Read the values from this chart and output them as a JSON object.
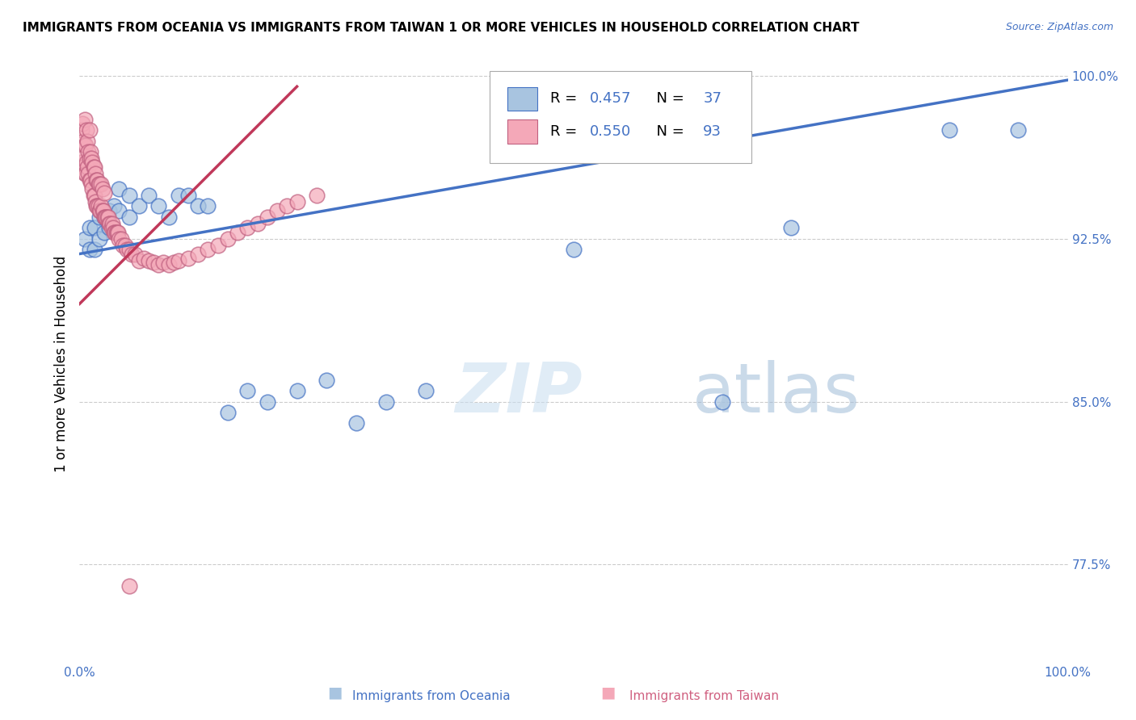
{
  "title": "IMMIGRANTS FROM OCEANIA VS IMMIGRANTS FROM TAIWAN 1 OR MORE VEHICLES IN HOUSEHOLD CORRELATION CHART",
  "source": "Source: ZipAtlas.com",
  "ylabel": "1 or more Vehicles in Household",
  "R_oceania": 0.457,
  "N_oceania": 37,
  "R_taiwan": 0.55,
  "N_taiwan": 93,
  "oceania_color": "#a8c4e0",
  "taiwan_color": "#f4a8b8",
  "trendline_oceania_color": "#4472c4",
  "trendline_taiwan_color": "#c0385a",
  "xlim": [
    0.0,
    1.0
  ],
  "ylim": [
    0.73,
    1.005
  ],
  "yticks": [
    0.775,
    0.85,
    0.925,
    1.0
  ],
  "ytick_labels": [
    "77.5%",
    "85.0%",
    "92.5%",
    "100.0%"
  ],
  "oceania_x": [
    0.005,
    0.01,
    0.01,
    0.015,
    0.015,
    0.02,
    0.02,
    0.025,
    0.025,
    0.03,
    0.03,
    0.035,
    0.04,
    0.04,
    0.05,
    0.05,
    0.06,
    0.07,
    0.08,
    0.09,
    0.1,
    0.11,
    0.12,
    0.13,
    0.15,
    0.17,
    0.19,
    0.22,
    0.25,
    0.28,
    0.31,
    0.35,
    0.5,
    0.65,
    0.72,
    0.88,
    0.95
  ],
  "oceania_y": [
    0.925,
    0.93,
    0.92,
    0.93,
    0.92,
    0.935,
    0.925,
    0.935,
    0.928,
    0.938,
    0.93,
    0.94,
    0.938,
    0.948,
    0.945,
    0.935,
    0.94,
    0.945,
    0.94,
    0.935,
    0.945,
    0.945,
    0.94,
    0.94,
    0.845,
    0.855,
    0.85,
    0.855,
    0.86,
    0.84,
    0.85,
    0.855,
    0.92,
    0.85,
    0.93,
    0.975,
    0.975
  ],
  "taiwan_x": [
    0.002,
    0.002,
    0.003,
    0.003,
    0.004,
    0.004,
    0.005,
    0.005,
    0.005,
    0.006,
    0.006,
    0.007,
    0.007,
    0.008,
    0.008,
    0.009,
    0.009,
    0.01,
    0.01,
    0.01,
    0.011,
    0.011,
    0.012,
    0.012,
    0.013,
    0.013,
    0.014,
    0.014,
    0.015,
    0.015,
    0.016,
    0.016,
    0.017,
    0.017,
    0.018,
    0.018,
    0.019,
    0.019,
    0.02,
    0.02,
    0.021,
    0.022,
    0.022,
    0.023,
    0.023,
    0.024,
    0.025,
    0.025,
    0.026,
    0.027,
    0.028,
    0.029,
    0.03,
    0.031,
    0.032,
    0.033,
    0.034,
    0.035,
    0.036,
    0.037,
    0.038,
    0.039,
    0.04,
    0.042,
    0.044,
    0.046,
    0.048,
    0.05,
    0.053,
    0.056,
    0.06,
    0.065,
    0.07,
    0.075,
    0.08,
    0.085,
    0.09,
    0.095,
    0.1,
    0.11,
    0.12,
    0.13,
    0.14,
    0.15,
    0.16,
    0.17,
    0.18,
    0.19,
    0.2,
    0.21,
    0.22,
    0.24,
    0.05
  ],
  "taiwan_y": [
    0.96,
    0.975,
    0.962,
    0.978,
    0.958,
    0.97,
    0.955,
    0.968,
    0.98,
    0.955,
    0.968,
    0.96,
    0.975,
    0.958,
    0.97,
    0.955,
    0.965,
    0.952,
    0.962,
    0.975,
    0.952,
    0.965,
    0.95,
    0.962,
    0.948,
    0.96,
    0.945,
    0.958,
    0.945,
    0.958,
    0.942,
    0.955,
    0.94,
    0.952,
    0.94,
    0.952,
    0.94,
    0.95,
    0.938,
    0.95,
    0.938,
    0.94,
    0.95,
    0.938,
    0.948,
    0.938,
    0.935,
    0.946,
    0.935,
    0.935,
    0.935,
    0.935,
    0.932,
    0.932,
    0.93,
    0.932,
    0.93,
    0.928,
    0.928,
    0.928,
    0.928,
    0.928,
    0.925,
    0.925,
    0.922,
    0.922,
    0.92,
    0.92,
    0.918,
    0.918,
    0.915,
    0.916,
    0.915,
    0.914,
    0.913,
    0.914,
    0.913,
    0.914,
    0.915,
    0.916,
    0.918,
    0.92,
    0.922,
    0.925,
    0.928,
    0.93,
    0.932,
    0.935,
    0.938,
    0.94,
    0.942,
    0.945,
    0.765
  ]
}
